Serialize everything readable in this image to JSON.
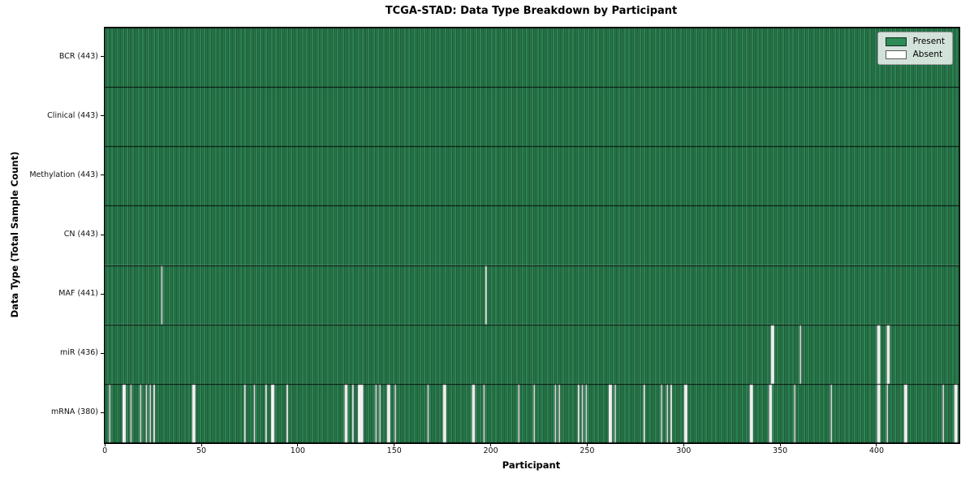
{
  "chart_data": {
    "type": "heatmap",
    "title": "TCGA-STAD: Data Type Breakdown by Participant",
    "xlabel": "Participant",
    "ylabel": "Data Type (Total Sample Count)",
    "n_participants": 443,
    "x_ticks": [
      0,
      50,
      100,
      150,
      200,
      250,
      300,
      350,
      400
    ],
    "legend_position": "upper right",
    "grid": false,
    "colors": {
      "present": "#2e8b57",
      "absent": "#ffffff",
      "edge": "#000000"
    },
    "legend": [
      {
        "label": "Present",
        "color": "#2e8b57"
      },
      {
        "label": "Absent",
        "color": "#ffffff"
      }
    ],
    "rows": [
      {
        "name": "BCR",
        "label": "BCR (443)",
        "present_count": 443,
        "absent": []
      },
      {
        "name": "Clinical",
        "label": "Clinical (443)",
        "present_count": 443,
        "absent": []
      },
      {
        "name": "Methylation",
        "label": "Methylation (443)",
        "present_count": 443,
        "absent": []
      },
      {
        "name": "CN",
        "label": "CN (443)",
        "present_count": 443,
        "absent": []
      },
      {
        "name": "MAF",
        "label": "MAF (441)",
        "present_count": 441,
        "absent": [
          29,
          197
        ]
      },
      {
        "name": "miR",
        "label": "miR (436)",
        "present_count": 436,
        "absent": [
          345,
          346,
          360,
          400,
          401,
          405,
          406
        ]
      },
      {
        "name": "mRNA",
        "label": "mRNA (380)",
        "present_count": 380,
        "absent": [
          2,
          9,
          10,
          13,
          18,
          21,
          23,
          25,
          45,
          46,
          72,
          77,
          83,
          86,
          87,
          94,
          124,
          125,
          128,
          131,
          132,
          133,
          140,
          142,
          146,
          147,
          150,
          167,
          175,
          176,
          190,
          191,
          196,
          214,
          222,
          233,
          235,
          245,
          247,
          249,
          261,
          262,
          264,
          279,
          288,
          291,
          293,
          300,
          301,
          334,
          335,
          344,
          345,
          357,
          376,
          400,
          401,
          405,
          414,
          415,
          434,
          440,
          441
        ]
      }
    ]
  }
}
